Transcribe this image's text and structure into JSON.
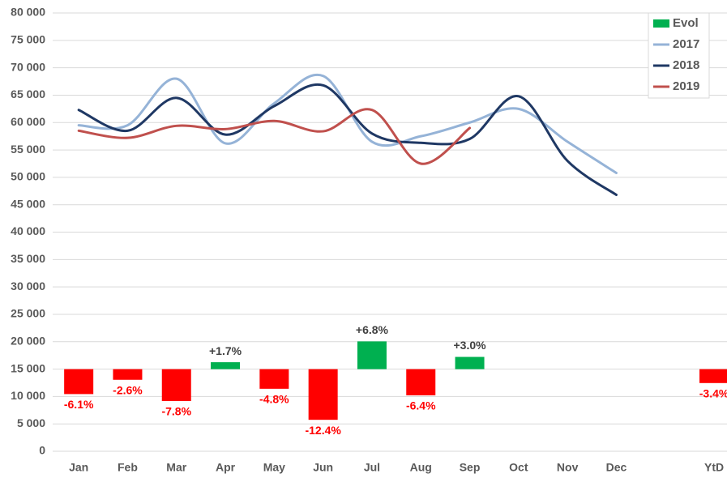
{
  "chart_data": {
    "type": "combo",
    "categories": [
      "Jan",
      "Feb",
      "Mar",
      "Apr",
      "May",
      "Jun",
      "Jul",
      "Aug",
      "Sep",
      "Oct",
      "Nov",
      "Dec",
      null,
      "YtD"
    ],
    "ylim": [
      0,
      80000
    ],
    "yticks": [
      {
        "value": 0,
        "label": "0"
      },
      {
        "value": 5000,
        "label": "5 000"
      },
      {
        "value": 10000,
        "label": "10 000"
      },
      {
        "value": 15000,
        "label": "15 000"
      },
      {
        "value": 20000,
        "label": "20 000"
      },
      {
        "value": 25000,
        "label": "25 000"
      },
      {
        "value": 30000,
        "label": "30 000"
      },
      {
        "value": 35000,
        "label": "35 000"
      },
      {
        "value": 40000,
        "label": "40 000"
      },
      {
        "value": 45000,
        "label": "45 000"
      },
      {
        "value": 50000,
        "label": "50 000"
      },
      {
        "value": 55000,
        "label": "55 000"
      },
      {
        "value": 60000,
        "label": "60 000"
      },
      {
        "value": 65000,
        "label": "65 000"
      },
      {
        "value": 70000,
        "label": "70 000"
      },
      {
        "value": 75000,
        "label": "75 000"
      },
      {
        "value": 80000,
        "label": "80 000"
      }
    ],
    "y2lim": [
      -20.1,
      87.2
    ],
    "grid": true,
    "legend": "upper right",
    "series": [
      {
        "name": "Evol",
        "type": "bar",
        "axis": "y2",
        "color": "#00B050",
        "negative_color": "#FF0000",
        "values": [
          -6.1,
          -2.6,
          -7.8,
          1.7,
          -4.8,
          -12.4,
          6.8,
          -6.4,
          3.0,
          null,
          null,
          null,
          null,
          -3.4
        ],
        "value_labels": [
          "-6.1%",
          "-2.6%",
          "-7.8%",
          "+1.7%",
          "-4.8%",
          "-12.4%",
          "+6.8%",
          "-6.4%",
          "+3.0%",
          null,
          null,
          null,
          null,
          "-3.4%"
        ]
      },
      {
        "name": "2017",
        "type": "line",
        "color": "#95B3D7",
        "values": [
          59500,
          59500,
          68000,
          56200,
          63500,
          68500,
          56500,
          57500,
          60000,
          62500,
          56500,
          50800,
          null,
          null
        ]
      },
      {
        "name": "2018",
        "type": "line",
        "color": "#1F3864",
        "values": [
          62300,
          58500,
          64500,
          57800,
          63000,
          66800,
          58000,
          56300,
          57000,
          64800,
          53000,
          46800,
          null,
          null
        ]
      },
      {
        "name": "2019",
        "type": "line",
        "color": "#C0504D",
        "values": [
          58500,
          57200,
          59400,
          58800,
          60300,
          58400,
          62300,
          52500,
          59000,
          null,
          null,
          null,
          null,
          null
        ]
      }
    ]
  }
}
